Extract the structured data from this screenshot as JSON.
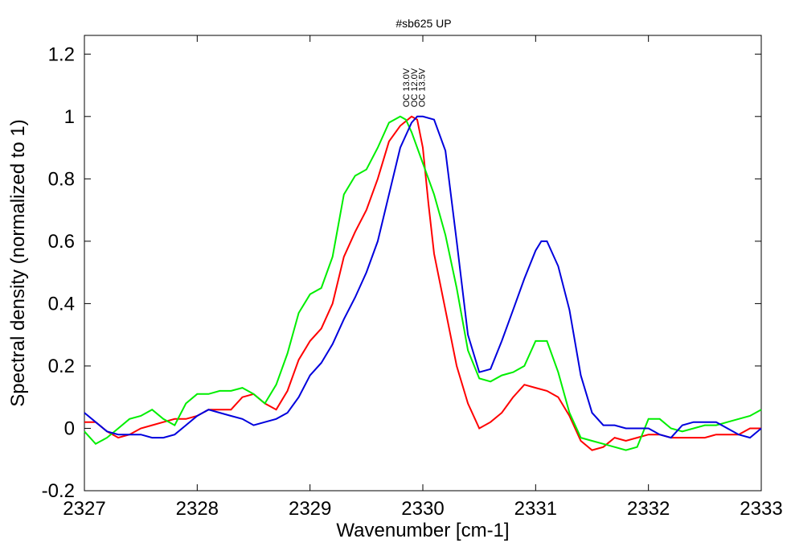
{
  "chart_data": {
    "type": "line",
    "title": "#sb625 UP",
    "xlabel": "Wavenumber [cm-1]",
    "ylabel": "Spectral density (normalized to 1)",
    "xlim": [
      2327,
      2333
    ],
    "ylim": [
      -0.2,
      1.26
    ],
    "xticks": [
      "2327",
      "2328",
      "2329",
      "2330",
      "2331",
      "2332",
      "2333"
    ],
    "yticks": [
      "-0.2",
      "0",
      "0.2",
      "0.4",
      "0.6",
      "0.8",
      "1",
      "1.2"
    ],
    "grid": false,
    "annotations": [
      {
        "text": "OC 13.0V",
        "x": 2329.85,
        "y": 1.03
      },
      {
        "text": "OC 12.0V",
        "x": 2329.92,
        "y": 1.03
      },
      {
        "text": "OC 13.5V",
        "x": 2329.99,
        "y": 1.03
      }
    ],
    "series": [
      {
        "color": "#ff0000",
        "x": [
          2327.0,
          2327.1,
          2327.2,
          2327.3,
          2327.4,
          2327.5,
          2327.6,
          2327.7,
          2327.8,
          2327.9,
          2328.0,
          2328.1,
          2328.2,
          2328.3,
          2328.4,
          2328.5,
          2328.6,
          2328.7,
          2328.8,
          2328.9,
          2329.0,
          2329.1,
          2329.2,
          2329.3,
          2329.4,
          2329.5,
          2329.6,
          2329.7,
          2329.8,
          2329.9,
          2329.95,
          2330.0,
          2330.05,
          2330.1,
          2330.2,
          2330.3,
          2330.4,
          2330.5,
          2330.6,
          2330.7,
          2330.8,
          2330.9,
          2331.0,
          2331.1,
          2331.2,
          2331.3,
          2331.4,
          2331.5,
          2331.6,
          2331.7,
          2331.8,
          2331.9,
          2332.0,
          2332.1,
          2332.2,
          2332.3,
          2332.4,
          2332.5,
          2332.6,
          2332.7,
          2332.8,
          2332.9,
          2333.0
        ],
        "y": [
          0.02,
          0.02,
          -0.01,
          -0.03,
          -0.02,
          0.0,
          0.01,
          0.02,
          0.03,
          0.03,
          0.04,
          0.06,
          0.06,
          0.06,
          0.1,
          0.11,
          0.08,
          0.06,
          0.12,
          0.22,
          0.28,
          0.32,
          0.4,
          0.55,
          0.63,
          0.7,
          0.8,
          0.92,
          0.97,
          1.0,
          0.99,
          0.9,
          0.72,
          0.56,
          0.38,
          0.2,
          0.08,
          0.0,
          0.02,
          0.05,
          0.1,
          0.14,
          0.13,
          0.12,
          0.1,
          0.04,
          -0.04,
          -0.07,
          -0.06,
          -0.03,
          -0.04,
          -0.03,
          -0.02,
          -0.02,
          -0.03,
          -0.03,
          -0.03,
          -0.03,
          -0.02,
          -0.02,
          -0.02,
          0.0,
          0.0
        ]
      },
      {
        "color": "#00ee00",
        "x": [
          2327.0,
          2327.1,
          2327.2,
          2327.3,
          2327.4,
          2327.5,
          2327.6,
          2327.7,
          2327.8,
          2327.9,
          2328.0,
          2328.1,
          2328.2,
          2328.3,
          2328.4,
          2328.5,
          2328.6,
          2328.7,
          2328.8,
          2328.9,
          2329.0,
          2329.1,
          2329.2,
          2329.3,
          2329.4,
          2329.5,
          2329.6,
          2329.7,
          2329.8,
          2329.85,
          2329.9,
          2330.0,
          2330.1,
          2330.2,
          2330.3,
          2330.4,
          2330.5,
          2330.6,
          2330.7,
          2330.8,
          2330.9,
          2331.0,
          2331.1,
          2331.2,
          2331.3,
          2331.4,
          2331.5,
          2331.6,
          2331.7,
          2331.8,
          2331.9,
          2332.0,
          2332.1,
          2332.2,
          2332.3,
          2332.4,
          2332.5,
          2332.6,
          2332.7,
          2332.8,
          2332.9,
          2333.0
        ],
        "y": [
          -0.01,
          -0.05,
          -0.03,
          0.0,
          0.03,
          0.04,
          0.06,
          0.03,
          0.01,
          0.08,
          0.11,
          0.11,
          0.12,
          0.12,
          0.13,
          0.11,
          0.08,
          0.14,
          0.24,
          0.37,
          0.43,
          0.45,
          0.55,
          0.75,
          0.81,
          0.83,
          0.9,
          0.98,
          1.0,
          0.99,
          0.95,
          0.85,
          0.75,
          0.62,
          0.45,
          0.25,
          0.16,
          0.15,
          0.17,
          0.18,
          0.2,
          0.28,
          0.28,
          0.18,
          0.05,
          -0.03,
          -0.04,
          -0.05,
          -0.06,
          -0.07,
          -0.06,
          0.03,
          0.03,
          0.0,
          -0.01,
          0.0,
          0.01,
          0.01,
          0.02,
          0.03,
          0.04,
          0.06
        ]
      },
      {
        "color": "#0000dd",
        "x": [
          2327.0,
          2327.1,
          2327.2,
          2327.3,
          2327.4,
          2327.5,
          2327.6,
          2327.7,
          2327.8,
          2327.9,
          2328.0,
          2328.1,
          2328.2,
          2328.3,
          2328.4,
          2328.5,
          2328.6,
          2328.7,
          2328.8,
          2328.9,
          2329.0,
          2329.1,
          2329.2,
          2329.3,
          2329.4,
          2329.5,
          2329.6,
          2329.7,
          2329.8,
          2329.9,
          2329.95,
          2330.0,
          2330.1,
          2330.2,
          2330.3,
          2330.4,
          2330.5,
          2330.6,
          2330.7,
          2330.8,
          2330.9,
          2331.0,
          2331.05,
          2331.1,
          2331.2,
          2331.3,
          2331.4,
          2331.5,
          2331.6,
          2331.7,
          2331.8,
          2331.9,
          2332.0,
          2332.1,
          2332.2,
          2332.3,
          2332.4,
          2332.5,
          2332.6,
          2332.7,
          2332.8,
          2332.9,
          2333.0
        ],
        "y": [
          0.05,
          0.02,
          -0.01,
          -0.02,
          -0.02,
          -0.02,
          -0.03,
          -0.03,
          -0.02,
          0.01,
          0.04,
          0.06,
          0.05,
          0.04,
          0.03,
          0.01,
          0.02,
          0.03,
          0.05,
          0.1,
          0.17,
          0.21,
          0.27,
          0.35,
          0.42,
          0.5,
          0.6,
          0.75,
          0.9,
          0.98,
          1.0,
          1.0,
          0.99,
          0.89,
          0.6,
          0.3,
          0.18,
          0.19,
          0.28,
          0.38,
          0.48,
          0.57,
          0.6,
          0.6,
          0.52,
          0.38,
          0.17,
          0.05,
          0.01,
          0.01,
          0.0,
          0.0,
          0.0,
          -0.02,
          -0.03,
          0.01,
          0.02,
          0.02,
          0.02,
          0.0,
          -0.02,
          -0.03,
          0.0
        ]
      }
    ]
  }
}
